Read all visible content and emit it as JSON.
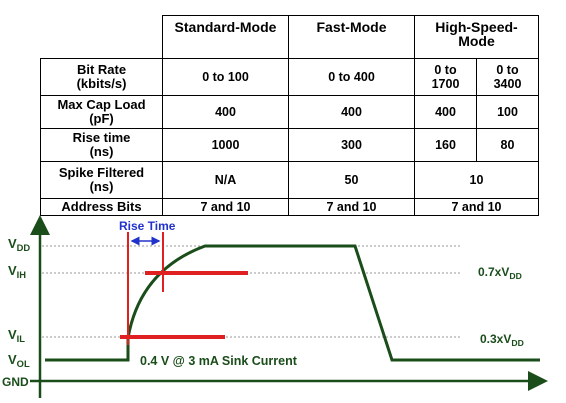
{
  "table": {
    "header": [
      "Standard-Mode",
      "Fast-Mode",
      [
        "High-Speed-",
        "Mode"
      ]
    ],
    "rows": [
      {
        "label": [
          "Bit Rate",
          "(kbits/s)"
        ],
        "cells": [
          "0 to 100",
          "0 to 400",
          [
            "0 to",
            "1700"
          ],
          [
            "0 to",
            "3400"
          ]
        ]
      },
      {
        "label": [
          "Max Cap Load",
          "(pF)"
        ],
        "cells": [
          "400",
          "400",
          "400",
          "100"
        ]
      },
      {
        "label": [
          "Rise time",
          "(ns)"
        ],
        "cells": [
          "1000",
          "300",
          "160",
          "80"
        ]
      },
      {
        "label": [
          "Spike Filtered",
          "(ns)"
        ],
        "cells": [
          "N/A",
          "50",
          "10"
        ]
      },
      {
        "label": [
          "Address Bits"
        ],
        "cells": [
          "7 and 10",
          "7 and 10",
          "7 and 10"
        ]
      }
    ]
  },
  "diagram": {
    "levels": {
      "vdd": {
        "main": "V",
        "sub": "DD"
      },
      "vih": {
        "main": "V",
        "sub": "IH"
      },
      "vil": {
        "main": "V",
        "sub": "IL"
      },
      "vol": {
        "main": "V",
        "sub": "OL"
      },
      "gnd": "GND"
    },
    "thresholds": {
      "high": {
        "prefix": "0.7x",
        "main": "V",
        "sub": "DD"
      },
      "low": {
        "prefix": "0.3x",
        "main": "V",
        "sub": "DD"
      }
    },
    "rise_time": "Rise Time",
    "sink_note": "0.4 V @ 3 mA Sink Current"
  }
}
